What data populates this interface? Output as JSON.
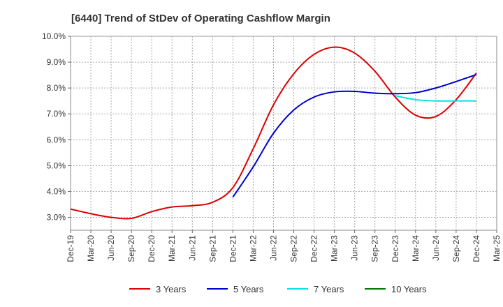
{
  "chart_data": {
    "type": "line",
    "title": "[6440]  Trend of StDev of Operating Cashflow Margin",
    "xlabel": "",
    "ylabel": "",
    "x": [
      "Dec-19",
      "Mar-20",
      "Jun-20",
      "Sep-20",
      "Dec-20",
      "Mar-21",
      "Jun-21",
      "Sep-21",
      "Dec-21",
      "Mar-22",
      "Jun-22",
      "Sep-22",
      "Dec-22",
      "Mar-23",
      "Jun-23",
      "Sep-23",
      "Dec-23",
      "Mar-24",
      "Jun-24",
      "Sep-24",
      "Dec-24",
      "Mar-25"
    ],
    "ylim": [
      2.5,
      10.0
    ],
    "yticks": [
      3.0,
      4.0,
      5.0,
      6.0,
      7.0,
      8.0,
      9.0,
      10.0
    ],
    "ytick_labels": [
      "3.0%",
      "4.0%",
      "5.0%",
      "6.0%",
      "7.0%",
      "8.0%",
      "9.0%",
      "10.0%"
    ],
    "grid": true,
    "legend_position": "bottom",
    "series": [
      {
        "name": "3 Years",
        "color": "#dd0000",
        "values": [
          3.32,
          3.14,
          3.0,
          2.96,
          3.22,
          3.4,
          3.45,
          3.58,
          4.15,
          5.65,
          7.35,
          8.55,
          9.3,
          9.58,
          9.35,
          8.65,
          7.65,
          6.95,
          6.9,
          7.55,
          8.58,
          null
        ]
      },
      {
        "name": "5 Years",
        "color": "#0000cc",
        "values": [
          null,
          null,
          null,
          null,
          null,
          null,
          null,
          null,
          3.78,
          4.95,
          6.25,
          7.15,
          7.65,
          7.85,
          7.87,
          7.8,
          7.78,
          7.82,
          8.0,
          8.25,
          8.52,
          null
        ]
      },
      {
        "name": "7 Years",
        "color": "#00e5e5",
        "values": [
          null,
          null,
          null,
          null,
          null,
          null,
          null,
          null,
          null,
          null,
          null,
          null,
          null,
          null,
          null,
          null,
          7.7,
          7.55,
          7.5,
          7.5,
          7.5,
          null
        ]
      },
      {
        "name": "10 Years",
        "color": "#007700",
        "values": [
          null,
          null,
          null,
          null,
          null,
          null,
          null,
          null,
          null,
          null,
          null,
          null,
          null,
          null,
          null,
          null,
          null,
          null,
          null,
          null,
          null,
          null
        ]
      }
    ]
  }
}
